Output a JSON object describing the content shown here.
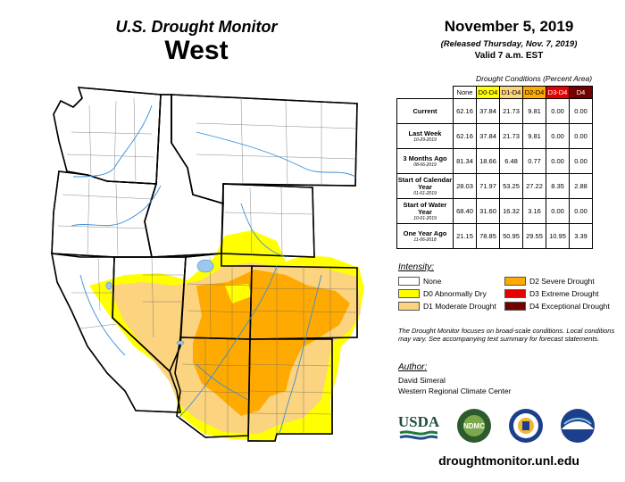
{
  "header": {
    "title": "U.S. Drought Monitor",
    "region": "West",
    "date": "November 5, 2019",
    "released": "(Released Thursday, Nov. 7, 2019)",
    "valid": "Valid 7 a.m. EST"
  },
  "table": {
    "caption": "Drought Conditions (Percent Area)",
    "columns": [
      {
        "label": "None",
        "color": "#ffffff",
        "text_color": "#000000"
      },
      {
        "label": "D0-D4",
        "color": "#ffff00",
        "text_color": "#000000"
      },
      {
        "label": "D1-D4",
        "color": "#fcd37f",
        "text_color": "#000000"
      },
      {
        "label": "D2-D4",
        "color": "#ffaa00",
        "text_color": "#000000"
      },
      {
        "label": "D3-D4",
        "color": "#e60000",
        "text_color": "#ffffff"
      },
      {
        "label": "D4",
        "color": "#730000",
        "text_color": "#ffffff"
      }
    ],
    "rows": [
      {
        "label": "Current",
        "sub": "",
        "values": [
          "62.16",
          "37.84",
          "21.73",
          "9.81",
          "0.00",
          "0.00"
        ]
      },
      {
        "label": "Last Week",
        "sub": "10-29-2019",
        "values": [
          "62.16",
          "37.84",
          "21.73",
          "9.81",
          "0.00",
          "0.00"
        ]
      },
      {
        "label": "3 Months Ago",
        "sub": "08-06-2019",
        "values": [
          "81.34",
          "18.66",
          "6.48",
          "0.77",
          "0.00",
          "0.00"
        ]
      },
      {
        "label": "Start of Calendar Year",
        "sub": "01-01-2019",
        "values": [
          "28.03",
          "71.97",
          "53.25",
          "27.22",
          "8.35",
          "2.88"
        ]
      },
      {
        "label": "Start of Water Year",
        "sub": "10-01-2019",
        "values": [
          "68.40",
          "31.60",
          "16.32",
          "3.16",
          "0.00",
          "0.00"
        ]
      },
      {
        "label": "One Year Ago",
        "sub": "11-06-2018",
        "values": [
          "21.15",
          "78.85",
          "50.95",
          "29.55",
          "10.95",
          "3.39"
        ]
      }
    ]
  },
  "legend": {
    "title": "Intensity:",
    "items": [
      {
        "label": "None",
        "color": "#ffffff"
      },
      {
        "label": "D0 Abnormally Dry",
        "color": "#ffff00"
      },
      {
        "label": "D1 Moderate Drought",
        "color": "#fcd37f"
      },
      {
        "label": "D2 Severe Drought",
        "color": "#ffaa00"
      },
      {
        "label": "D3 Extreme Drought",
        "color": "#e60000"
      },
      {
        "label": "D4 Exceptional Drought",
        "color": "#730000"
      }
    ]
  },
  "note": "The Drought Monitor focuses on broad-scale conditions. Local conditions may vary. See accompanying text summary for forecast statements.",
  "author": {
    "title": "Author:",
    "name": "David Simeral",
    "org": "Western Regional Climate Center"
  },
  "logos": [
    "USDA",
    "NDMC",
    "DOC",
    "NOAA"
  ],
  "url": "droughtmonitor.unl.edu",
  "colors": {
    "state_fill": "#ffffff",
    "border": "#000000",
    "rivers": "#3a8fd8",
    "lakes": "#9cc8ec"
  }
}
